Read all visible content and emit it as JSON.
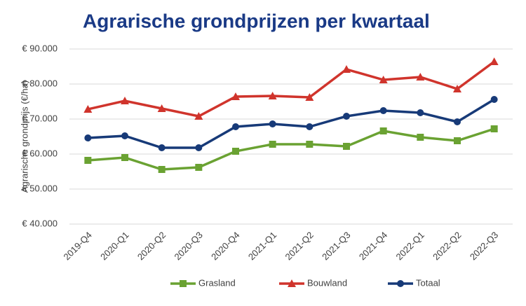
{
  "chart_data": {
    "type": "line",
    "title": "Agrarische grondprijzen per kwartaal",
    "y_label": "Agrarische grondprijs (€/ha)",
    "categories": [
      "2019-Q4",
      "2020-Q1",
      "2020-Q2",
      "2020-Q3",
      "2020-Q4",
      "2021-Q1",
      "2021-Q2",
      "2021-Q3",
      "2021-Q4",
      "2022-Q1",
      "2022-Q2",
      "2022-Q3"
    ],
    "series": [
      {
        "name": "Grasland",
        "color": "#6aa232",
        "marker": "square",
        "values": [
          58200,
          59000,
          55600,
          56200,
          60800,
          62800,
          62800,
          62200,
          66600,
          64800,
          63800,
          67200
        ]
      },
      {
        "name": "Bouwland",
        "color": "#d0342c",
        "marker": "triangle",
        "values": [
          72800,
          75200,
          73000,
          70800,
          76400,
          76600,
          76200,
          84200,
          81200,
          82000,
          78600,
          86400
        ]
      },
      {
        "name": "Totaal",
        "color": "#173a78",
        "marker": "circle",
        "values": [
          64600,
          65200,
          61800,
          61800,
          67800,
          68600,
          67800,
          70800,
          72400,
          71800,
          69200,
          75600
        ]
      }
    ],
    "ylim": [
      40000,
      90000
    ],
    "yticks": [
      {
        "value": 40000,
        "label": "€ 40.000"
      },
      {
        "value": 50000,
        "label": "€ 50.000"
      },
      {
        "value": 60000,
        "label": "€ 60.000"
      },
      {
        "value": 70000,
        "label": "€ 70.000"
      },
      {
        "value": 80000,
        "label": "€ 80.000"
      },
      {
        "value": 90000,
        "label": "€ 90.000"
      }
    ],
    "grid": true,
    "legend": "bottom"
  }
}
